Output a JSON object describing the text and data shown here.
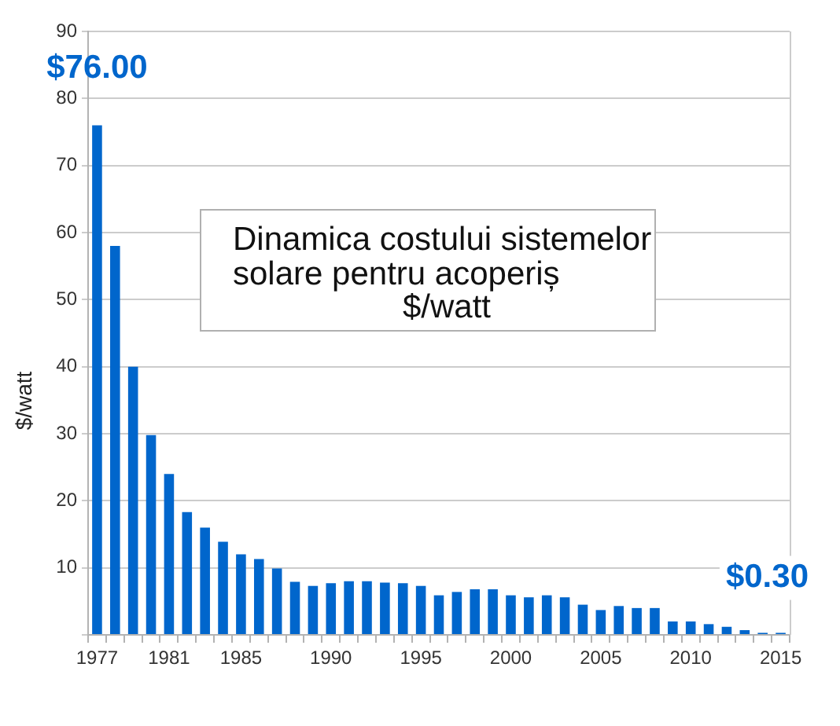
{
  "chart_data": {
    "type": "bar",
    "title": "Dinamica costului sistemelor\nsolare pentru acoperiș\n$/watt",
    "ylabel": "$/watt",
    "categories": [
      "1977",
      null,
      null,
      null,
      "1981",
      null,
      null,
      null,
      "1985",
      null,
      null,
      null,
      null,
      "1990",
      null,
      null,
      null,
      null,
      "1995",
      null,
      null,
      null,
      null,
      "2000",
      null,
      null,
      null,
      null,
      "2005",
      null,
      null,
      null,
      null,
      "2010",
      null,
      null,
      null,
      null,
      "2015"
    ],
    "values": [
      76,
      58,
      40,
      29.8,
      24,
      18.3,
      16,
      13.9,
      12,
      11.3,
      9.9,
      7.9,
      7.3,
      7.7,
      8,
      8,
      7.8,
      7.7,
      7.3,
      5.9,
      6.4,
      6.8,
      6.8,
      5.9,
      5.6,
      5.9,
      5.6,
      4.5,
      3.7,
      4.3,
      4,
      4,
      2,
      2,
      1.6,
      1.2,
      0.7,
      0.3,
      0.3
    ],
    "value_labels": [
      "$76.00",
      null,
      null,
      null,
      null,
      null,
      null,
      null,
      null,
      null,
      null,
      null,
      null,
      null,
      null,
      null,
      null,
      null,
      null,
      null,
      null,
      null,
      null,
      null,
      null,
      null,
      null,
      null,
      null,
      null,
      null,
      null,
      null,
      null,
      null,
      null,
      null,
      null,
      "$0.30"
    ],
    "color": "#0066cc",
    "ylim": [
      0,
      90
    ],
    "yticks": [
      {
        "value": 0,
        "label": null
      },
      10,
      20,
      30,
      40,
      50,
      60,
      70,
      80,
      90
    ],
    "grid": "y"
  }
}
